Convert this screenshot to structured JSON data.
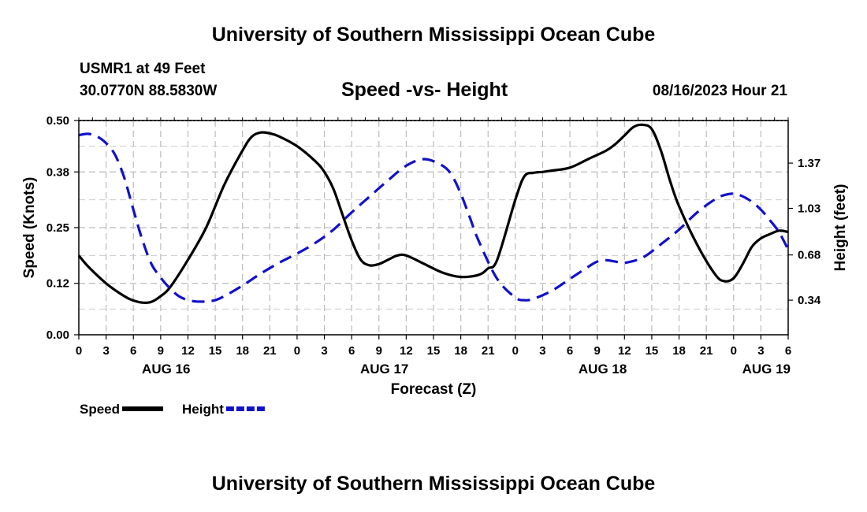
{
  "page": {
    "title_top": "University of Southern Mississippi Ocean Cube",
    "title_bottom": "University of Southern Mississippi Ocean Cube",
    "station": "USMR1 at 49 Feet",
    "coords": "30.0770N  88.5830W",
    "subtitle": "Speed -vs- Height",
    "datetime": "08/16/2023 Hour 21"
  },
  "chart_data": {
    "type": "line",
    "title": "Speed -vs- Height",
    "xlabel": "Forecast (Z)",
    "ylabel": "Speed (Knots)",
    "y2label": "Height (feet)",
    "xlim": [
      0,
      78
    ],
    "ylim": [
      0,
      0.5
    ],
    "y2lim": [
      0.08,
      1.69
    ],
    "x_ticks": [
      0,
      3,
      6,
      9,
      12,
      15,
      18,
      21,
      24,
      27,
      30,
      33,
      36,
      39,
      42,
      45,
      48,
      51,
      54,
      57,
      60,
      63,
      66,
      69,
      72,
      75,
      78
    ],
    "x_tick_labels": [
      "0",
      "3",
      "6",
      "9",
      "12",
      "15",
      "18",
      "21",
      "0",
      "3",
      "6",
      "9",
      "12",
      "15",
      "18",
      "21",
      "0",
      "3",
      "6",
      "9",
      "12",
      "15",
      "18",
      "21",
      "0",
      "3",
      "6"
    ],
    "date_labels": [
      {
        "label": "AUG 16",
        "x": 9.6
      },
      {
        "label": "AUG 17",
        "x": 33.6
      },
      {
        "label": "AUG 18",
        "x": 57.6
      },
      {
        "label": "AUG 19",
        "x": 75.6
      }
    ],
    "y_ticks": [
      0.0,
      0.12,
      0.25,
      0.38,
      0.5
    ],
    "y_tick_labels": [
      "0.00",
      "0.12",
      "0.25",
      "0.38",
      "0.50"
    ],
    "y2_ticks": [
      0.34,
      0.68,
      1.03,
      1.37
    ],
    "y2_tick_labels": [
      "0.34",
      "0.68",
      "1.03",
      "1.37"
    ],
    "legend": [
      {
        "name": "Speed",
        "color": "#000000",
        "dash": "solid"
      },
      {
        "name": "Height",
        "color": "#1111cc",
        "dash": "dashed"
      }
    ],
    "series": [
      {
        "name": "Speed",
        "axis": "left",
        "color": "#000000",
        "x": [
          0,
          1,
          3,
          5,
          6,
          7,
          8,
          9,
          10,
          12,
          14,
          16,
          18,
          19,
          20,
          21,
          22,
          24,
          26,
          27,
          28,
          29,
          30,
          31,
          32,
          33,
          34,
          35,
          36,
          38,
          40,
          42,
          44,
          45,
          46,
          48,
          49,
          50,
          51,
          52,
          54,
          56,
          58,
          59,
          60,
          61,
          62,
          63,
          64,
          65,
          66,
          68,
          70,
          71,
          72,
          73,
          74,
          75,
          76,
          77,
          78
        ],
        "y": [
          0.185,
          0.16,
          0.12,
          0.09,
          0.08,
          0.075,
          0.077,
          0.09,
          0.11,
          0.175,
          0.25,
          0.35,
          0.43,
          0.462,
          0.472,
          0.47,
          0.463,
          0.44,
          0.405,
          0.38,
          0.34,
          0.28,
          0.22,
          0.175,
          0.162,
          0.165,
          0.175,
          0.185,
          0.185,
          0.165,
          0.145,
          0.135,
          0.14,
          0.155,
          0.175,
          0.315,
          0.37,
          0.378,
          0.38,
          0.383,
          0.39,
          0.41,
          0.43,
          0.445,
          0.465,
          0.485,
          0.49,
          0.48,
          0.43,
          0.36,
          0.3,
          0.21,
          0.14,
          0.125,
          0.132,
          0.165,
          0.205,
          0.225,
          0.235,
          0.243,
          0.24
        ]
      },
      {
        "name": "Height",
        "axis": "right",
        "color": "#1111cc",
        "x": [
          0,
          1,
          2,
          3,
          4,
          5,
          6,
          7,
          8,
          9,
          10,
          11,
          12,
          13,
          14,
          15,
          16,
          18,
          20,
          22,
          24,
          26,
          28,
          30,
          32,
          34,
          36,
          38,
          40,
          41,
          42,
          43,
          44,
          46,
          48,
          49,
          50,
          52,
          54,
          56,
          57,
          58,
          59,
          60,
          62,
          64,
          66,
          68,
          70,
          71,
          72,
          73,
          74,
          75,
          76,
          77,
          78
        ],
        "y": [
          1.58,
          1.59,
          1.57,
          1.52,
          1.43,
          1.26,
          1.02,
          0.79,
          0.61,
          0.51,
          0.43,
          0.37,
          0.34,
          0.33,
          0.33,
          0.34,
          0.37,
          0.45,
          0.54,
          0.62,
          0.69,
          0.77,
          0.87,
          1.0,
          1.12,
          1.24,
          1.35,
          1.4,
          1.35,
          1.28,
          1.14,
          0.96,
          0.78,
          0.5,
          0.36,
          0.34,
          0.35,
          0.41,
          0.5,
          0.59,
          0.63,
          0.64,
          0.63,
          0.62,
          0.66,
          0.76,
          0.87,
          1.0,
          1.1,
          1.13,
          1.14,
          1.12,
          1.08,
          1.02,
          0.94,
          0.85,
          0.72
        ]
      }
    ]
  }
}
